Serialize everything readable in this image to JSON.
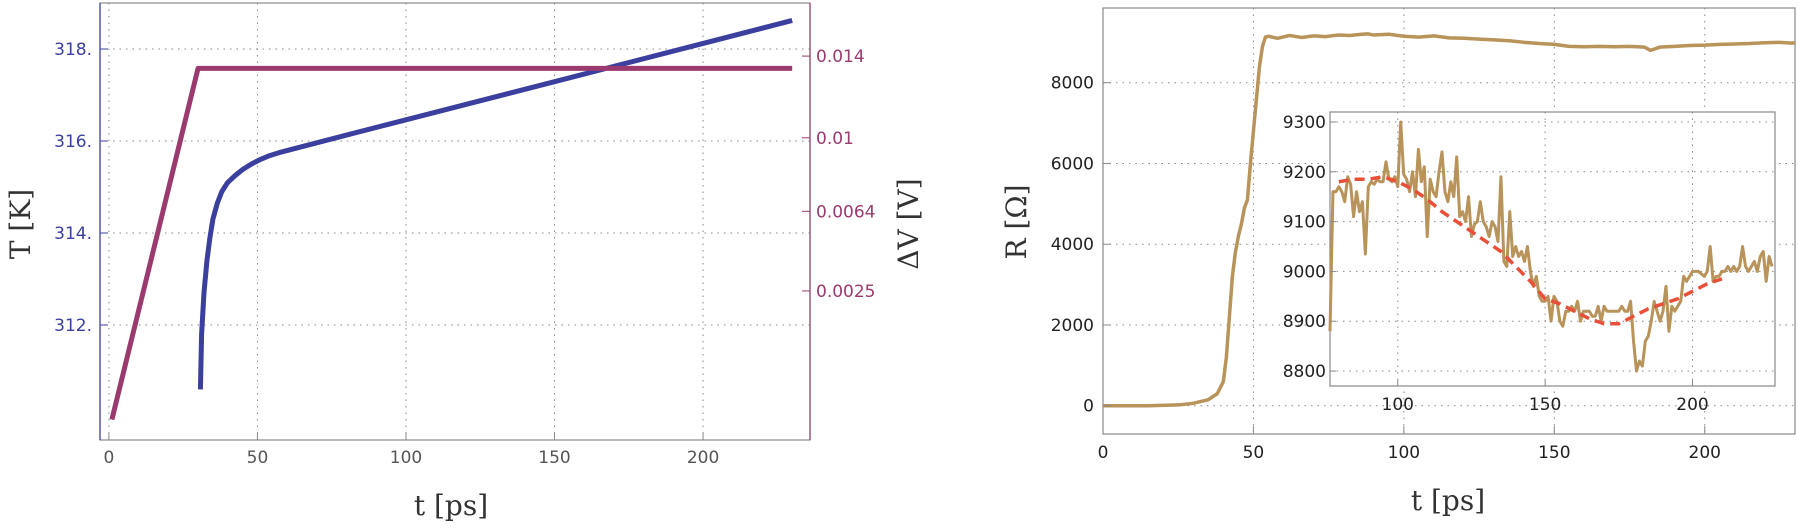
{
  "chart_data": [
    {
      "type": "line",
      "xlabel": "t [ps]",
      "ylabel_left": "T [K]",
      "ylabel_right": "ΔV [V]",
      "xlim": [
        -3,
        236
      ],
      "x_ticks": [
        0,
        50,
        100,
        150,
        200
      ],
      "y_left_lim": [
        309.5,
        319.0
      ],
      "y_left_ticks": [
        312,
        314,
        316,
        318
      ],
      "y_left_tick_labels": [
        "312.",
        "314.",
        "316.",
        "318."
      ],
      "y_right_ticks": [
        0.0025,
        0.0064,
        0.01,
        0.014
      ],
      "y_right_tick_labels": [
        "0.0025",
        "0.0064",
        "0.01",
        "0.014"
      ],
      "y_right_lim": [
        -0.0048,
        0.0166
      ],
      "grid": true,
      "colors": {
        "temperature": "#3b3f9e",
        "voltage": "#9a3a6e"
      },
      "series": [
        {
          "axis": "left",
          "color": "#3b3f9e",
          "x": [
            30.8,
            31.2,
            32,
            33,
            34,
            35,
            36.5,
            38,
            40,
            42.5,
            45,
            48,
            51,
            54,
            58,
            80,
            100,
            150,
            200,
            230
          ],
          "y": [
            310.6,
            311.8,
            312.7,
            313.4,
            313.9,
            314.3,
            314.65,
            314.9,
            315.1,
            315.25,
            315.38,
            315.5,
            315.6,
            315.68,
            315.76,
            316.13,
            316.46,
            317.29,
            318.12,
            318.62
          ]
        },
        {
          "axis": "right",
          "color": "#9a3a6e",
          "x": [
            1,
            30,
            230
          ],
          "y": [
            -0.0038,
            0.0134,
            0.0134
          ]
        }
      ]
    },
    {
      "type": "line",
      "xlabel": "t [ps]",
      "ylabel": "R [Ω]",
      "xlim": [
        0,
        230
      ],
      "ylim": [
        -700,
        9850
      ],
      "x_ticks": [
        0,
        50,
        100,
        150,
        200
      ],
      "y_ticks": [
        0,
        2000,
        4000,
        6000,
        8000
      ],
      "grid": true,
      "color": "#b8935a",
      "series": [
        {
          "x": [
            0,
            15,
            25,
            30,
            35,
            38,
            40,
            41,
            42,
            43,
            44,
            45,
            46,
            47,
            48,
            49,
            50,
            51,
            52,
            53,
            54,
            55,
            58,
            62,
            66,
            70,
            74,
            78,
            82,
            86,
            88,
            90,
            95,
            100,
            105,
            110,
            115,
            120,
            125,
            130,
            135,
            140,
            145,
            150,
            155,
            160,
            165,
            170,
            175,
            180,
            182,
            185,
            190,
            195,
            200,
            205,
            210,
            215,
            220,
            225,
            229,
            230
          ],
          "y": [
            0,
            0,
            20,
            60,
            150,
            300,
            600,
            1200,
            2200,
            3200,
            3800,
            4200,
            4500,
            4900,
            5100,
            6000,
            6800,
            7600,
            8400,
            8900,
            9130,
            9150,
            9100,
            9170,
            9120,
            9160,
            9140,
            9180,
            9170,
            9200,
            9210,
            9180,
            9200,
            9150,
            9130,
            9160,
            9110,
            9100,
            9080,
            9060,
            9040,
            9000,
            8970,
            8950,
            8900,
            8890,
            8900,
            8890,
            8900,
            8880,
            8800,
            8880,
            8900,
            8920,
            8930,
            8950,
            8960,
            8970,
            8990,
            9000,
            8980,
            8990
          ]
        }
      ],
      "inset": {
        "xlim": [
          77,
          228
        ],
        "ylim": [
          8770,
          9320
        ],
        "x_ticks": [
          100,
          150,
          200
        ],
        "y_ticks": [
          8800,
          8900,
          9000,
          9100,
          9200,
          9300
        ],
        "grid": true,
        "series": [
          {
            "name": "",
            "color": "#b8935a",
            "x": [
              77,
              78,
              79,
              80,
              81,
              82,
              83,
              84,
              85,
              86,
              87,
              88,
              89,
              90,
              91,
              92,
              93,
              94,
              95,
              96,
              97,
              98,
              99,
              100,
              101,
              102,
              103,
              104,
              105,
              106,
              107,
              108,
              109,
              110,
              111,
              112,
              113,
              114,
              115,
              116,
              117,
              118,
              119,
              120,
              121,
              122,
              123,
              124,
              125,
              126,
              127,
              128,
              129,
              130,
              131,
              132,
              133,
              134,
              135,
              136,
              137,
              138,
              139,
              140,
              141,
              142,
              143,
              144,
              145,
              146,
              147,
              148,
              149,
              150,
              151,
              152,
              153,
              154,
              155,
              156,
              157,
              158,
              159,
              160,
              161,
              162,
              163,
              164,
              165,
              166,
              167,
              168,
              169,
              170,
              171,
              172,
              173,
              174,
              175,
              176,
              177,
              178,
              179,
              180,
              181,
              182,
              183,
              184,
              185,
              186,
              187,
              188,
              189,
              190,
              191,
              192,
              193,
              194,
              195,
              196,
              197,
              198,
              199,
              200,
              201,
              202,
              203,
              204,
              205,
              206,
              207,
              208,
              209,
              210,
              211,
              212,
              213,
              214,
              215,
              216,
              217,
              218,
              219,
              220,
              221,
              222,
              223,
              224,
              225,
              226,
              227
            ],
            "y": [
              8880,
              9160,
              9160,
              9170,
              9160,
              9140,
              9190,
              9175,
              9110,
              9160,
              9120,
              9140,
              9035,
              9170,
              9180,
              9175,
              9185,
              9180,
              9180,
              9220,
              9185,
              9180,
              9190,
              9170,
              9300,
              9195,
              9185,
              9160,
              9200,
              9150,
              9245,
              9180,
              9210,
              9070,
              9185,
              9160,
              9150,
              9200,
              9240,
              9160,
              9140,
              9180,
              9150,
              9230,
              9110,
              9120,
              9100,
              9150,
              9070,
              9095,
              9100,
              9140,
              9100,
              9090,
              9070,
              9100,
              9090,
              9060,
              9190,
              9020,
              9010,
              9120,
              9030,
              9050,
              9030,
              9040,
              9020,
              9050,
              9000,
              8970,
              8990,
              8950,
              8940,
              8940,
              8950,
              8900,
              8950,
              8940,
              8900,
              8890,
              8920,
              8920,
              8930,
              8920,
              8940,
              8900,
              8920,
              8920,
              8920,
              8910,
              8910,
              8930,
              8900,
              8930,
              8920,
              8920,
              8920,
              8920,
              8920,
              8930,
              8920,
              8920,
              8940,
              8860,
              8800,
              8820,
              8810,
              8860,
              8870,
              8900,
              8940,
              8920,
              8900,
              8920,
              8970,
              8880,
              8930,
              8920,
              8930,
              8940,
              8990,
              8980,
              8990,
              9000,
              9000,
              9000,
              8995,
              8990,
              9000,
              9050,
              8980,
              8990,
              8990,
              9000,
              9000,
              9010,
              9000,
              9010,
              9000,
              9010,
              9050,
              9010,
              9000,
              9010,
              9020,
              9000,
              9030,
              9040,
              8980,
              9030,
              9010
            ]
          },
          {
            "name": "",
            "color": "#e8503a",
            "dashed": true,
            "x": [
              80,
              85,
              90,
              95,
              100,
              105,
              110,
              115,
              120,
              125,
              130,
              135,
              140,
              145,
              150,
              155,
              160,
              165,
              170,
              175,
              180,
              185,
              190,
              195,
              200,
              205,
              210
            ],
            "y": [
              9180,
              9185,
              9185,
              9190,
              9180,
              9165,
              9145,
              9120,
              9100,
              9080,
              9060,
              9040,
              9010,
              8980,
              8945,
              8935,
              8920,
              8905,
              8895,
              8895,
              8910,
              8925,
              8935,
              8945,
              8960,
              8975,
              8985
            ]
          }
        ]
      }
    }
  ]
}
